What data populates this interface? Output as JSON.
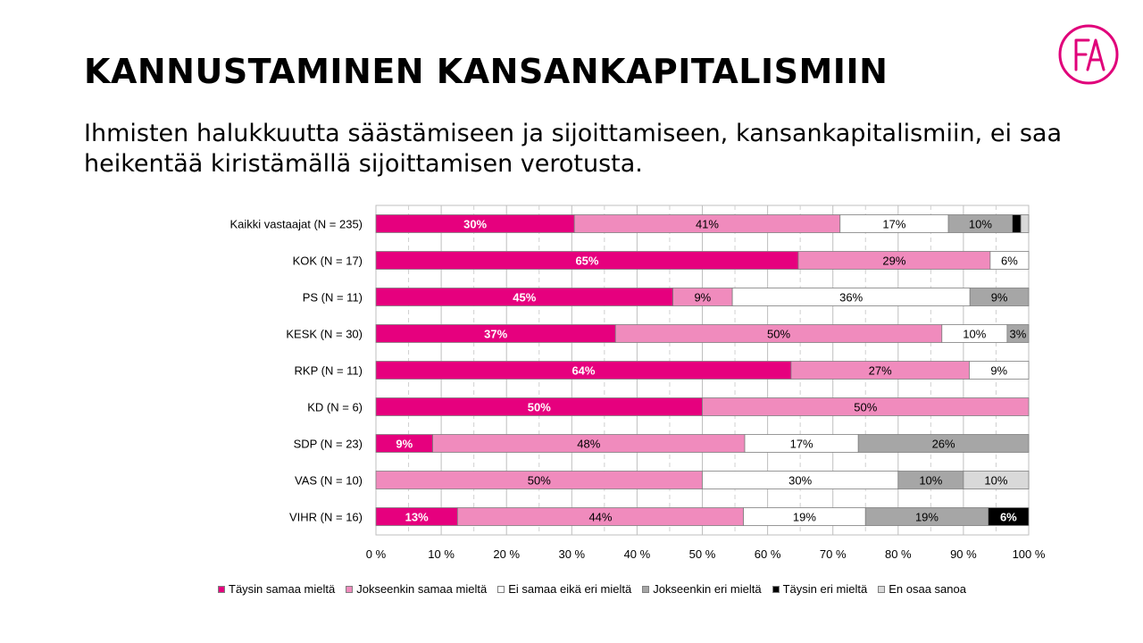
{
  "title": "KANNUSTAMINEN KANSANKAPITALISMIIN",
  "subtitle": "Ihmisten halukkuutta säästämiseen ja sijoittamiseen, kansankapitalismiin, ei saa heikentää kiristämällä sijoittamisen verotusta.",
  "logo": {
    "icon": "fa-logo-icon",
    "text": "FA",
    "color": "#e0007a"
  },
  "colors": [
    "#e6007e",
    "#f08bbd",
    "#ffffff",
    "#a6a6a6",
    "#000000",
    "#d9d9d9"
  ],
  "chart_data": {
    "type": "bar",
    "orientation": "horizontal",
    "stacked": true,
    "categories": [
      "Kaikki vastaajat (N = 235)",
      "KOK (N = 17)",
      "PS (N = 11)",
      "KESK (N = 30)",
      "RKP (N = 11)",
      "KD (N = 6)",
      "SDP (N = 23)",
      "VAS (N = 10)",
      "VIHR (N = 16)"
    ],
    "series": [
      {
        "name": "Täysin samaa mieltä",
        "values": [
          30.4,
          64.7,
          45.5,
          36.7,
          63.6,
          50,
          8.7,
          0,
          12.5
        ],
        "labels": [
          "30%",
          "65%",
          "45%",
          "37%",
          "64%",
          "50%",
          "9%",
          "",
          "13%"
        ]
      },
      {
        "name": "Jokseenkin samaa mieltä",
        "values": [
          40.7,
          29.4,
          9.1,
          50,
          27.3,
          50,
          47.8,
          50,
          43.8
        ],
        "labels": [
          "41%",
          "29%",
          "9%",
          "50%",
          "27%",
          "50%",
          "48%",
          "50%",
          "44%"
        ]
      },
      {
        "name": "Ei samaa eikä eri mieltä",
        "values": [
          16.6,
          5.9,
          36.4,
          10,
          9.1,
          0,
          17.4,
          30,
          18.7
        ],
        "labels": [
          "17%",
          "6%",
          "36%",
          "10%",
          "9%",
          "",
          "17%",
          "30%",
          "19%"
        ]
      },
      {
        "name": "Jokseenkin eri mieltä",
        "values": [
          9.8,
          0,
          9,
          3.3,
          0,
          0,
          26.1,
          10,
          18.8
        ],
        "labels": [
          "10%",
          "",
          "9%",
          "3%",
          "",
          "",
          "26%",
          "10%",
          "19%"
        ]
      },
      {
        "name": "Täysin eri mieltä",
        "values": [
          1.3,
          0,
          0,
          0,
          0,
          0,
          0,
          0,
          6.2
        ],
        "labels": [
          "",
          "",
          "",
          "",
          "",
          "",
          "",
          "",
          "6%"
        ]
      },
      {
        "name": "En osaa sanoa",
        "values": [
          1.2,
          0,
          0,
          0,
          0,
          0,
          0,
          10,
          0
        ],
        "labels": [
          "",
          "",
          "",
          "",
          "",
          "",
          "",
          "10%",
          ""
        ]
      }
    ],
    "xticks": [
      "0 %",
      "10 %",
      "20 %",
      "30 %",
      "40 %",
      "50 %",
      "60 %",
      "70 %",
      "80 %",
      "90 %",
      "100 %"
    ],
    "xlim": [
      0,
      100
    ],
    "grid": "vertical dashed",
    "legend": "bottom"
  }
}
